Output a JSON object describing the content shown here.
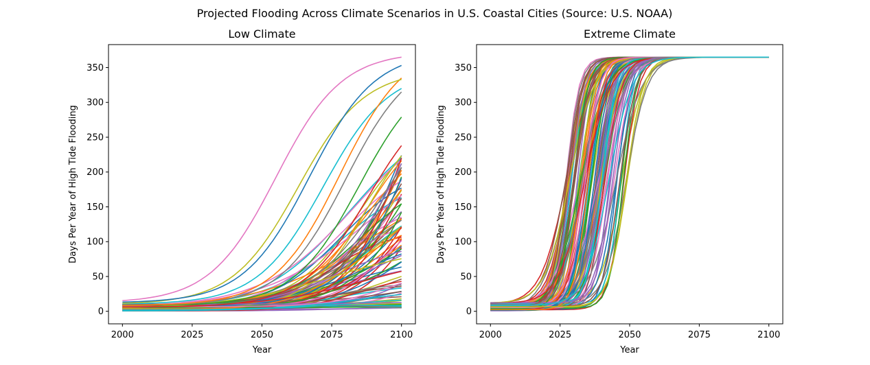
{
  "suptitle": "Projected Flooding Across Climate Scenarios in U.S. Coastal Cities (Source: U.S. NOAA)",
  "palette": [
    "#1f77b4",
    "#ff7f0e",
    "#2ca02c",
    "#d62728",
    "#9467bd",
    "#8c564b",
    "#e377c2",
    "#7f7f7f",
    "#bcbd22",
    "#17becf"
  ],
  "chart_data": [
    {
      "type": "line",
      "title": "Low Climate",
      "xlabel": "Year",
      "ylabel": "Days Per Year of High Tide Flooding",
      "xlim": [
        1995,
        2105
      ],
      "ylim": [
        -18,
        383
      ],
      "xticks": [
        2000,
        2025,
        2050,
        2075,
        2100
      ],
      "yticks": [
        0,
        50,
        100,
        150,
        200,
        250,
        300,
        350
      ],
      "series_count": 100,
      "x_range": [
        2000,
        2100
      ],
      "notes": "One line per coastal city; curves rise slowly then accelerate. Highest reaches ~365 days by ~2095.",
      "highlighted_series": [
        {
          "color": "#e377c2",
          "start": 12,
          "end": 365,
          "midyear": 2055
        },
        {
          "color": "#1f77b4",
          "start": 12,
          "end": 353,
          "midyear": 2067
        },
        {
          "color": "#bcbd22",
          "start": 10,
          "end": 333,
          "midyear": 2063
        },
        {
          "color": "#ff7f0e",
          "start": 8,
          "end": 335,
          "midyear": 2078
        },
        {
          "color": "#17becf",
          "start": 10,
          "end": 320,
          "midyear": 2072
        },
        {
          "color": "#7f7f7f",
          "start": 8,
          "end": 315,
          "midyear": 2080
        },
        {
          "color": "#2ca02c",
          "start": 8,
          "end": 279,
          "midyear": 2085
        },
        {
          "color": "#d62728",
          "start": 6,
          "end": 238,
          "midyear": 2088
        }
      ]
    },
    {
      "type": "line",
      "title": "Extreme Climate",
      "xlabel": "Year",
      "ylabel": "Days Per Year of High Tide Flooding",
      "xlim": [
        1995,
        2105
      ],
      "ylim": [
        -18,
        383
      ],
      "xticks": [
        2000,
        2025,
        2050,
        2075,
        2100
      ],
      "yticks": [
        0,
        50,
        100,
        150,
        200,
        250,
        300,
        350
      ],
      "series_count": 100,
      "x_range": [
        2000,
        2100
      ],
      "notes": "Same cities; all curves saturate at 365 days, most between 2035 and 2060.",
      "saturation_value": 365,
      "saturation_year_range": [
        2040,
        2072
      ]
    }
  ]
}
